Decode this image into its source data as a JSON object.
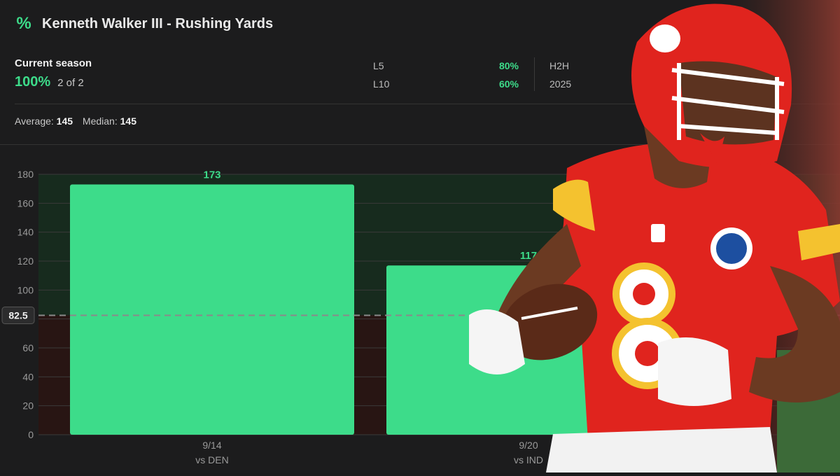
{
  "header": {
    "icon": "percent-icon",
    "title": "Kenneth Walker III - Rushing Yards"
  },
  "season": {
    "label": "Current season",
    "hit_rate": "100%",
    "count": "2 of 2"
  },
  "splits": [
    {
      "label": "L5",
      "value": "80%"
    },
    {
      "label": "L10",
      "value": "60%"
    }
  ],
  "h2h": {
    "label": "H2H",
    "year": "2025"
  },
  "stats": {
    "average_label": "Average:",
    "average_value": "145",
    "median_label": "Median:",
    "median_value": "145"
  },
  "colors": {
    "accent": "#3ddc8a",
    "bar": "#3ddc8a",
    "above_zone": "#15301f",
    "below_zone": "#2a1412",
    "background": "#1c1c1d"
  },
  "chart_data": {
    "type": "bar",
    "categories": [
      "9/14",
      "9/20"
    ],
    "opponents": [
      "vs DEN",
      "vs IND"
    ],
    "values": [
      173,
      117
    ],
    "line": 82.5,
    "line_label": "82.5",
    "ylim": [
      0,
      180
    ],
    "yticks": [
      0,
      20,
      40,
      60,
      80,
      100,
      120,
      140,
      160,
      180
    ],
    "grid": true,
    "title": "",
    "xlabel": "",
    "ylabel": ""
  }
}
